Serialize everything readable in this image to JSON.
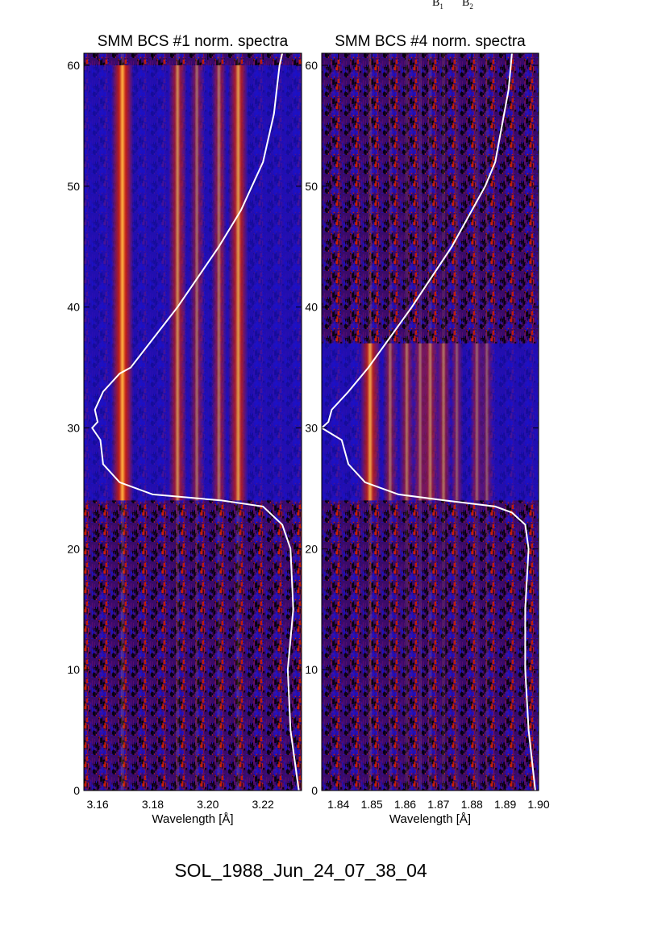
{
  "top_labels": [
    {
      "base": "B",
      "sub": "1"
    },
    {
      "base": "B",
      "sub": "2"
    }
  ],
  "footer_text": "SOL_1988_Jun_24_07_38_04",
  "colors": {
    "background_low": "#000000",
    "background_mid": "#1a10c8",
    "emission": "#d82000",
    "emission_peak": "#ffb040",
    "curve": "#ffffff"
  },
  "chart_data": [
    {
      "type": "heatmap",
      "title": "SMM BCS #1 norm. spectra",
      "xlabel": "Wavelength [Å]",
      "ylabel": "",
      "xlim": [
        3.155,
        3.234
      ],
      "ylim": [
        0,
        61
      ],
      "xticks": [
        3.16,
        3.18,
        3.2,
        3.22
      ],
      "xtick_labels": [
        "3.16",
        "3.18",
        "3.20",
        "3.22"
      ],
      "yticks": [
        0,
        10,
        20,
        30,
        40,
        50,
        60
      ],
      "ytick_labels": [
        "0",
        "10",
        "20",
        "30",
        "40",
        "50",
        "60"
      ],
      "emission_lines": [
        {
          "wavelength": 3.169,
          "strength": 1.0
        },
        {
          "wavelength": 3.189,
          "strength": 0.75
        },
        {
          "wavelength": 3.196,
          "strength": 0.55
        },
        {
          "wavelength": 3.204,
          "strength": 0.6
        },
        {
          "wavelength": 3.211,
          "strength": 0.85
        }
      ],
      "flare_interval": [
        24,
        60
      ],
      "curve": [
        {
          "y": 0,
          "x": 3.233
        },
        {
          "y": 5,
          "x": 3.23
        },
        {
          "y": 10,
          "x": 3.229
        },
        {
          "y": 15,
          "x": 3.231
        },
        {
          "y": 20,
          "x": 3.23
        },
        {
          "y": 22,
          "x": 3.227
        },
        {
          "y": 23.5,
          "x": 3.22
        },
        {
          "y": 24,
          "x": 3.205
        },
        {
          "y": 24.5,
          "x": 3.18
        },
        {
          "y": 25.5,
          "x": 3.168
        },
        {
          "y": 27,
          "x": 3.162
        },
        {
          "y": 29,
          "x": 3.161
        },
        {
          "y": 30,
          "x": 3.158
        },
        {
          "y": 30.5,
          "x": 3.16
        },
        {
          "y": 31.5,
          "x": 3.159
        },
        {
          "y": 33,
          "x": 3.162
        },
        {
          "y": 34.5,
          "x": 3.168
        },
        {
          "y": 35,
          "x": 3.172
        },
        {
          "y": 40,
          "x": 3.189
        },
        {
          "y": 45,
          "x": 3.204
        },
        {
          "y": 48,
          "x": 3.212
        },
        {
          "y": 50,
          "x": 3.216
        },
        {
          "y": 52,
          "x": 3.22
        },
        {
          "y": 54,
          "x": 3.222
        },
        {
          "y": 56,
          "x": 3.224
        },
        {
          "y": 58,
          "x": 3.225
        },
        {
          "y": 60,
          "x": 3.226
        },
        {
          "y": 61,
          "x": 3.227
        }
      ]
    },
    {
      "type": "heatmap",
      "title": "SMM BCS #4 norm. spectra",
      "xlabel": "Wavelength [Å]",
      "ylabel": "",
      "xlim": [
        1.835,
        1.9
      ],
      "ylim": [
        0,
        61
      ],
      "xticks": [
        1.84,
        1.85,
        1.86,
        1.87,
        1.88,
        1.89,
        1.9
      ],
      "xtick_labels": [
        "1.84",
        "1.85",
        "1.86",
        "1.87",
        "1.88",
        "1.89",
        "1.90"
      ],
      "yticks": [
        0,
        10,
        20,
        30,
        40,
        50,
        60
      ],
      "ytick_labels": [
        "0",
        "10",
        "20",
        "30",
        "40",
        "50",
        "60"
      ],
      "emission_lines": [
        {
          "wavelength": 1.8495,
          "strength": 0.9
        },
        {
          "wavelength": 1.8555,
          "strength": 0.55
        },
        {
          "wavelength": 1.8605,
          "strength": 0.6
        },
        {
          "wavelength": 1.8645,
          "strength": 0.55
        },
        {
          "wavelength": 1.8675,
          "strength": 0.65
        },
        {
          "wavelength": 1.8715,
          "strength": 0.6
        },
        {
          "wavelength": 1.8755,
          "strength": 0.45
        },
        {
          "wavelength": 1.8815,
          "strength": 0.5
        },
        {
          "wavelength": 1.8845,
          "strength": 0.45
        }
      ],
      "flare_interval": [
        24,
        37
      ],
      "curve": [
        {
          "y": 0,
          "x": 1.899
        },
        {
          "y": 5,
          "x": 1.897
        },
        {
          "y": 10,
          "x": 1.896
        },
        {
          "y": 15,
          "x": 1.896
        },
        {
          "y": 20,
          "x": 1.897
        },
        {
          "y": 22,
          "x": 1.896
        },
        {
          "y": 23,
          "x": 1.892
        },
        {
          "y": 23.5,
          "x": 1.887
        },
        {
          "y": 24,
          "x": 1.872
        },
        {
          "y": 24.5,
          "x": 1.858
        },
        {
          "y": 25.5,
          "x": 1.848
        },
        {
          "y": 27,
          "x": 1.843
        },
        {
          "y": 29,
          "x": 1.841
        },
        {
          "y": 30,
          "x": 1.835
        },
        {
          "y": 30.5,
          "x": 1.837
        },
        {
          "y": 31.5,
          "x": 1.838
        },
        {
          "y": 33,
          "x": 1.843
        },
        {
          "y": 35,
          "x": 1.849
        },
        {
          "y": 40,
          "x": 1.862
        },
        {
          "y": 45,
          "x": 1.874
        },
        {
          "y": 48,
          "x": 1.88
        },
        {
          "y": 50,
          "x": 1.884
        },
        {
          "y": 52,
          "x": 1.887
        },
        {
          "y": 55,
          "x": 1.889
        },
        {
          "y": 58,
          "x": 1.891
        },
        {
          "y": 61,
          "x": 1.892
        }
      ]
    }
  ]
}
